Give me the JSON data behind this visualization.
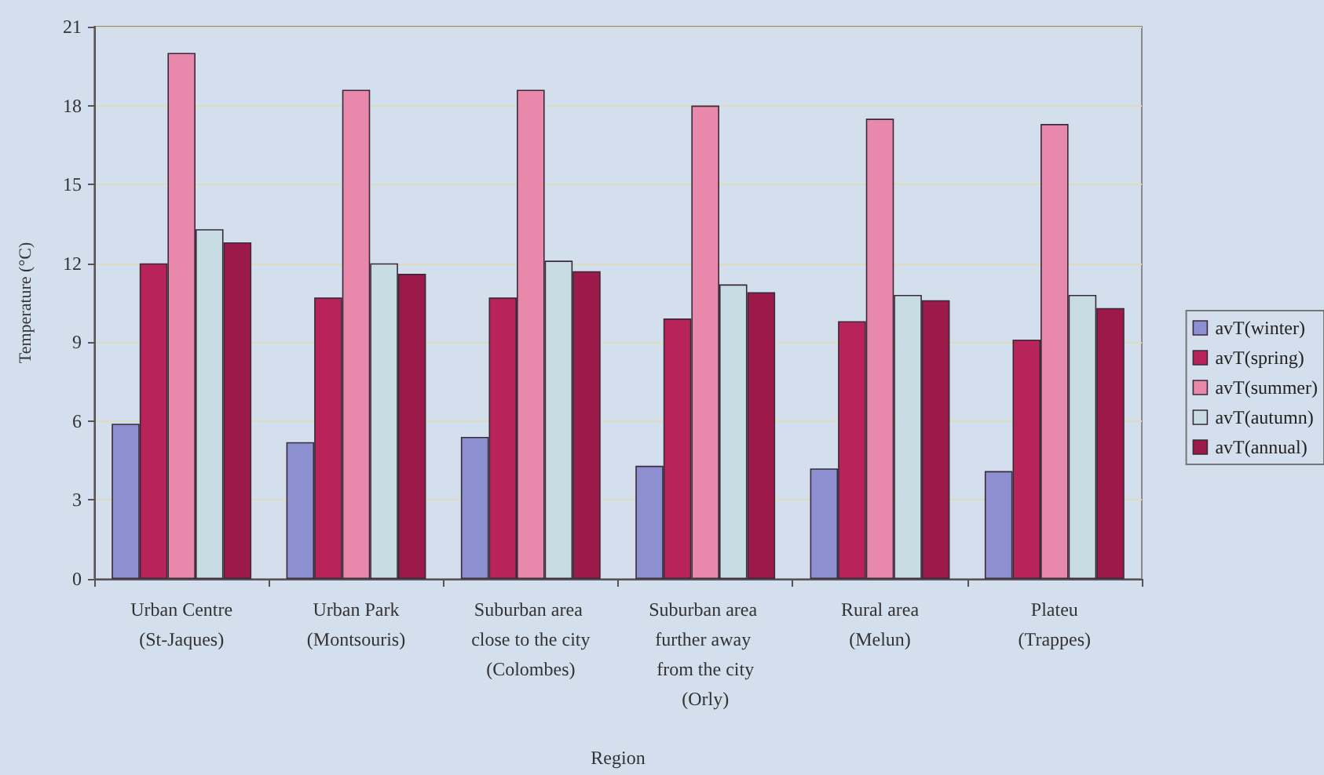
{
  "chart_data": {
    "type": "bar",
    "xlabel": "Region",
    "ylabel": "Temperature (°C)",
    "categories": [
      "Urban Centre (St-Jaques)",
      "Urban Park (Montsouris)",
      "Suburban area close to the city (Colombes)",
      "Suburban area further away from the city (Orly)",
      "Rural area (Melun)",
      "Plateu (Trappes)"
    ],
    "series": [
      {
        "name": "avT(winter)",
        "color": "#8c8fd0",
        "values": [
          5.9,
          5.2,
          5.4,
          4.3,
          4.2,
          4.1
        ]
      },
      {
        "name": "avT(spring)",
        "color": "#b8245a",
        "values": [
          12.0,
          10.7,
          10.7,
          9.9,
          9.8,
          9.1
        ]
      },
      {
        "name": "avT(summer)",
        "color": "#e889ab",
        "values": [
          20.0,
          18.6,
          18.6,
          18.0,
          17.5,
          17.3
        ]
      },
      {
        "name": "avT(autumn)",
        "color": "#c8dce4",
        "values": [
          13.3,
          12.0,
          12.1,
          11.2,
          10.8,
          10.8
        ]
      },
      {
        "name": "avT(annual)",
        "color": "#9c1a4a",
        "values": [
          12.8,
          11.6,
          11.7,
          10.9,
          10.6,
          10.3
        ]
      }
    ],
    "ylim": [
      0,
      21
    ],
    "yticks": [
      0,
      3,
      6,
      9,
      12,
      15,
      18,
      21
    ],
    "grid": "y",
    "legend": "right"
  }
}
